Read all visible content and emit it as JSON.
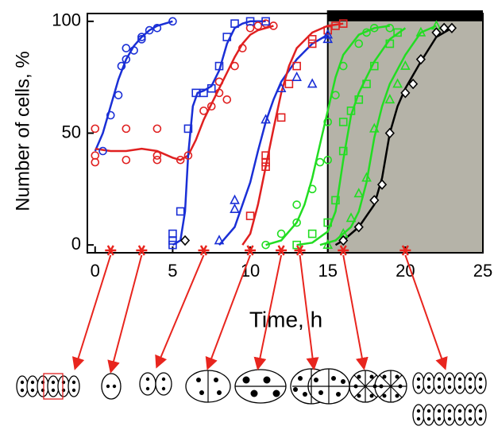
{
  "chart_data": {
    "type": "scatter",
    "xlabel": "Time, h",
    "ylabel": "Number of cells, %",
    "xlim": [
      -0.5,
      25
    ],
    "ylim": [
      -3.5,
      103.5
    ],
    "xticks": [
      0,
      5,
      10,
      15,
      20,
      25
    ],
    "yticks": [
      0,
      50,
      100
    ],
    "shade": [
      15,
      25
    ],
    "shade_color": "#b5b3a8",
    "series": [
      {
        "marker": "circle",
        "color": "#1a2fd6",
        "x": [
          0.5,
          1,
          1.5,
          1.7,
          2,
          2,
          2.5,
          3,
          3,
          3.5,
          4,
          5
        ],
        "values": [
          42,
          58,
          67,
          80,
          83,
          88,
          87,
          93,
          92,
          96,
          97,
          100
        ]
      },
      {
        "marker": "circle",
        "color": "#e02020",
        "x": [
          0,
          0,
          0,
          2,
          2,
          4,
          4,
          4,
          5.5,
          6,
          7,
          7.5,
          8,
          8,
          8.5,
          9,
          9.5,
          10,
          10.5,
          11,
          11.5
        ],
        "values": [
          52,
          37,
          40,
          38,
          52,
          52,
          38,
          40,
          38,
          40,
          60,
          62,
          68,
          73,
          65,
          80,
          88,
          97,
          98,
          99,
          98
        ]
      },
      {
        "marker": "square",
        "color": "#1a2fd6",
        "x": [
          5,
          5,
          5,
          5.5,
          6,
          6.5,
          7,
          7.5,
          8,
          8.5,
          9,
          10,
          11
        ],
        "values": [
          0,
          2,
          5,
          15,
          52,
          68,
          68,
          70,
          80,
          93,
          99,
          100,
          100
        ]
      },
      {
        "marker": "square",
        "color": "#e02020",
        "x": [
          10,
          11,
          11,
          11,
          12,
          12.5,
          13,
          14,
          14,
          15,
          15.5,
          16
        ],
        "values": [
          13,
          35,
          37,
          40,
          57,
          72,
          80,
          90,
          92,
          96,
          98,
          99
        ]
      },
      {
        "marker": "triangle",
        "color": "#1a2fd6",
        "x": [
          8,
          9,
          9,
          11,
          12,
          13,
          14,
          15,
          15
        ],
        "values": [
          2,
          20,
          16,
          56,
          70,
          75,
          72,
          92,
          94
        ]
      },
      {
        "marker": "circle",
        "color": "#22dd22",
        "x": [
          11,
          12,
          13,
          13,
          14,
          14.5,
          15,
          15,
          15.5,
          16,
          17,
          17.5,
          18,
          19
        ],
        "values": [
          0,
          5,
          10,
          18,
          25,
          37,
          38,
          55,
          67,
          80,
          90,
          95,
          97,
          97
        ]
      },
      {
        "marker": "square",
        "color": "#22dd22",
        "x": [
          13,
          14,
          15,
          15.5,
          16,
          16,
          16.5,
          17,
          17.5,
          18,
          19,
          19.5
        ],
        "values": [
          0,
          5,
          10,
          20,
          42,
          55,
          60,
          65,
          72,
          80,
          90,
          95
        ]
      },
      {
        "marker": "triangle",
        "color": "#22dd22",
        "x": [
          15,
          16,
          16.5,
          17,
          17.5,
          18,
          19,
          19.5,
          20,
          21,
          22
        ],
        "values": [
          0,
          5,
          12,
          23,
          30,
          52,
          65,
          72,
          80,
          95,
          98
        ]
      },
      {
        "marker": "diamond",
        "color": "#000000",
        "x": [
          5.8,
          16,
          17,
          18,
          18.5,
          19,
          20,
          20.5,
          21,
          22,
          22.5,
          23
        ],
        "values": [
          2,
          2,
          8,
          20,
          27,
          50,
          68,
          72,
          83,
          95,
          97,
          97
        ]
      }
    ],
    "fits": [
      {
        "color": "#1a2fd6",
        "x": [
          0,
          0.5,
          1,
          1.5,
          2,
          2.5,
          3,
          3.5,
          4,
          5
        ],
        "values": [
          42,
          50,
          62,
          74,
          83,
          89,
          93,
          96,
          98,
          100
        ]
      },
      {
        "color": "#e02020",
        "x": [
          0,
          1,
          2,
          3,
          4,
          5,
          5.5,
          6,
          6.5,
          7,
          7.5,
          8,
          8.5,
          9,
          9.5,
          10,
          10.5,
          11,
          11.5
        ],
        "values": [
          43,
          42,
          42,
          43,
          42,
          39,
          38,
          40,
          47,
          56,
          63,
          70,
          77,
          84,
          90,
          94,
          96,
          97,
          98
        ]
      },
      {
        "color": "#1a2fd6",
        "x": [
          5,
          5.5,
          5.8,
          6,
          6.3,
          6.6,
          7,
          7.5,
          8,
          8.5,
          9,
          9.5,
          10,
          11
        ],
        "values": [
          0,
          2,
          15,
          40,
          62,
          68,
          69,
          71,
          78,
          90,
          97,
          99,
          100,
          100
        ]
      },
      {
        "color": "#1a2fd6",
        "x": [
          8,
          9,
          10,
          10.5,
          11,
          11.5,
          12,
          13,
          14,
          15
        ],
        "values": [
          0,
          8,
          28,
          42,
          55,
          65,
          73,
          83,
          90,
          94
        ]
      },
      {
        "color": "#e02020",
        "x": [
          9.5,
          10,
          10.5,
          11,
          11.5,
          12,
          12.5,
          13,
          14,
          15,
          16
        ],
        "values": [
          0,
          5,
          18,
          35,
          52,
          68,
          80,
          88,
          95,
          98,
          99
        ]
      },
      {
        "color": "#22dd22",
        "x": [
          11,
          12,
          13,
          13.5,
          14,
          14.5,
          15,
          15.5,
          16,
          17,
          18,
          19
        ],
        "values": [
          0,
          2,
          10,
          18,
          30,
          45,
          60,
          75,
          85,
          94,
          97,
          98
        ]
      },
      {
        "color": "#22dd22",
        "x": [
          13,
          14,
          15,
          15.5,
          16,
          16.5,
          17,
          17.5,
          18,
          19,
          20
        ],
        "values": [
          0,
          1,
          6,
          15,
          38,
          58,
          68,
          75,
          82,
          92,
          97
        ]
      },
      {
        "color": "#22dd22",
        "x": [
          14.5,
          15.5,
          16.5,
          17,
          17.5,
          18,
          18.5,
          19,
          20,
          21,
          22
        ],
        "values": [
          0,
          2,
          8,
          15,
          28,
          48,
          62,
          72,
          85,
          95,
          98
        ]
      },
      {
        "color": "#000000",
        "x": [
          15.5,
          16,
          17,
          18,
          18.5,
          19,
          19.5,
          20,
          21,
          22,
          23
        ],
        "values": [
          0,
          2,
          8,
          18,
          30,
          50,
          62,
          70,
          82,
          93,
          97
        ]
      }
    ],
    "time_marks": {
      "color": "#e8251e",
      "x": [
        1,
        3,
        7,
        10,
        12,
        13.2,
        16,
        20
      ]
    }
  }
}
